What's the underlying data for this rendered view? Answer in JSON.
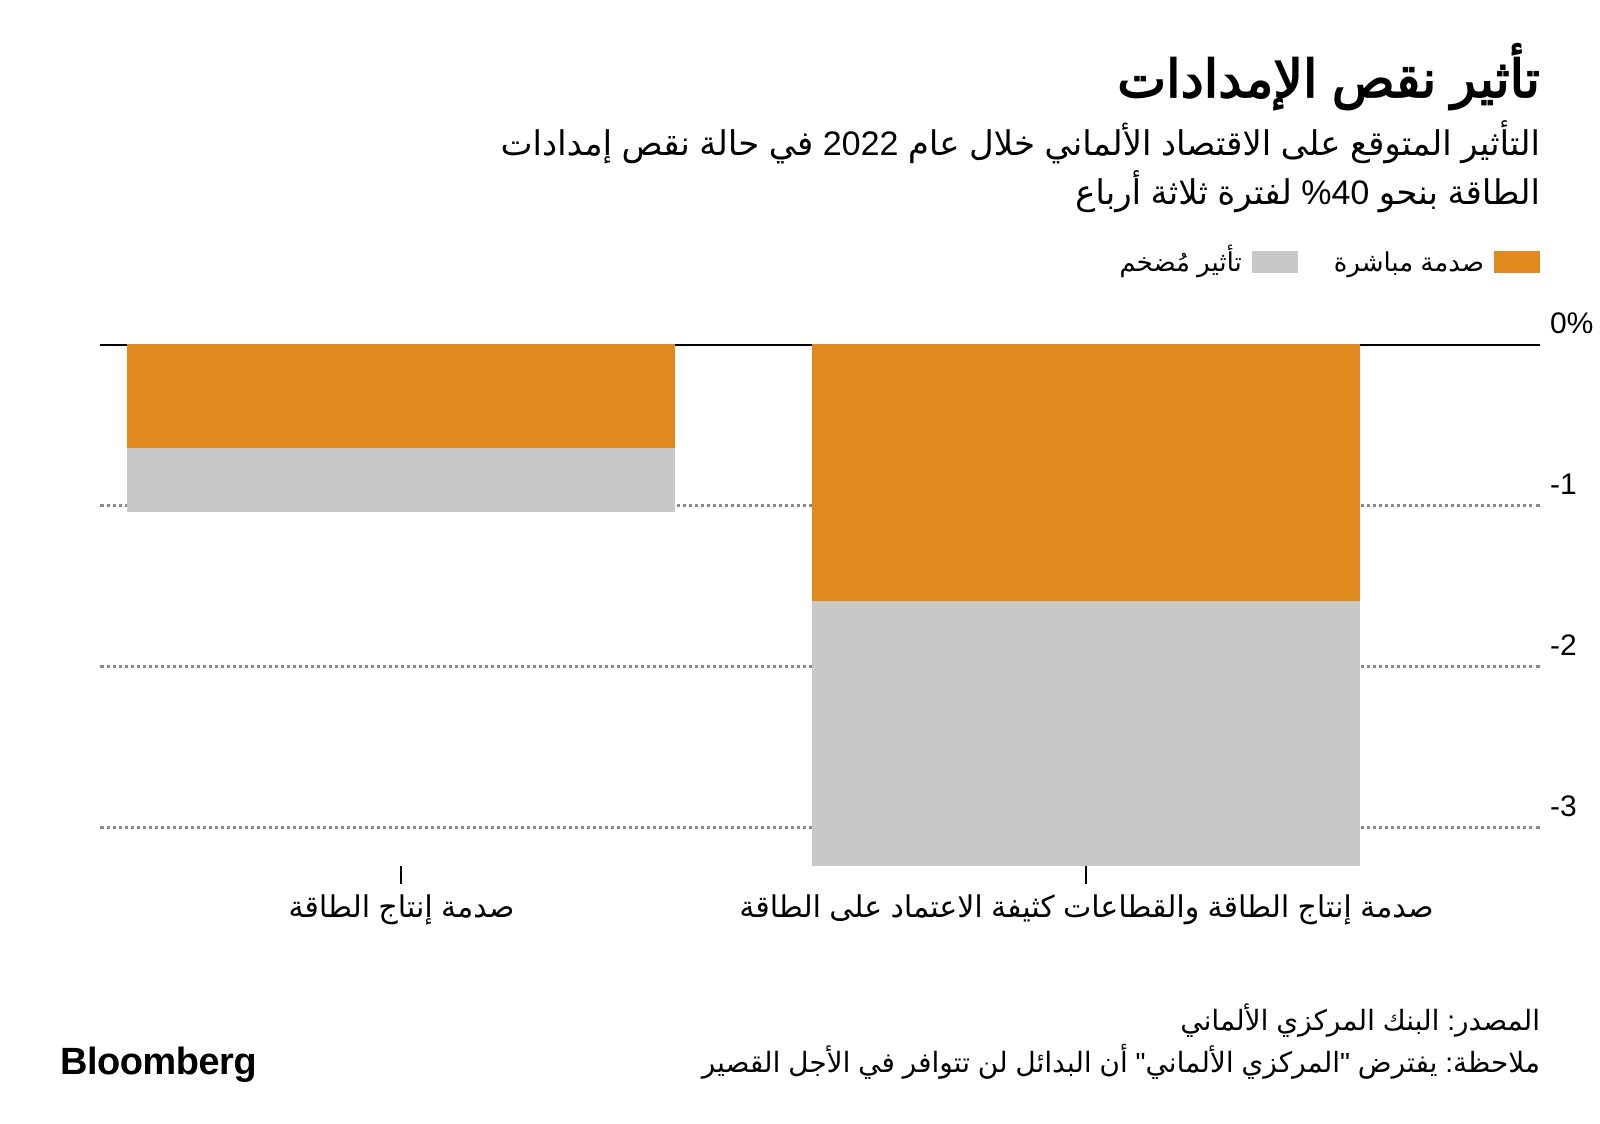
{
  "title": "تأثير نقص الإمدادات",
  "subtitle": "التأثير المتوقع على الاقتصاد الألماني خلال عام 2022 في حالة نقص إمدادات الطاقة بنحو 40% لفترة ثلاثة أرباع",
  "legend": {
    "direct": "صدمة مباشرة",
    "amplified": "تأثير مُضخم"
  },
  "chart": {
    "type": "stacked-bar-negative",
    "ymin": -3.25,
    "ymax": 0,
    "yticks": [
      {
        "v": 0,
        "label": "0%"
      },
      {
        "v": -1,
        "label": "-1"
      },
      {
        "v": -2,
        "label": "-2"
      },
      {
        "v": -3,
        "label": "-3"
      }
    ],
    "categories": [
      {
        "key": "full",
        "label": "صدمة إنتاج الطاقة والقطاعات كثيفة الاعتماد على الطاقة",
        "direct": -1.6,
        "amplified": -1.65,
        "centerPct": 28,
        "widthPct": 40
      },
      {
        "key": "energy",
        "label": "صدمة إنتاج الطاقة",
        "direct": -0.65,
        "amplified": -0.4,
        "centerPct": 78,
        "widthPct": 40
      }
    ],
    "colors": {
      "direct": "#e08a1e",
      "amplified": "#c8c8c8",
      "grid": "#8a8a8a",
      "zero": "#000000",
      "bg": "#ffffff"
    },
    "font": {
      "title": 52,
      "subtitle": 34,
      "legend": 26,
      "axis": 30,
      "xlabel": 30,
      "footer": 28,
      "brand": 38
    }
  },
  "footer": {
    "source": "المصدر: البنك المركزي الألماني",
    "note": "ملاحظة: يفترض \"المركزي الألماني\" أن البدائل لن تتوافر في الأجل القصير",
    "brand": "Bloomberg"
  }
}
